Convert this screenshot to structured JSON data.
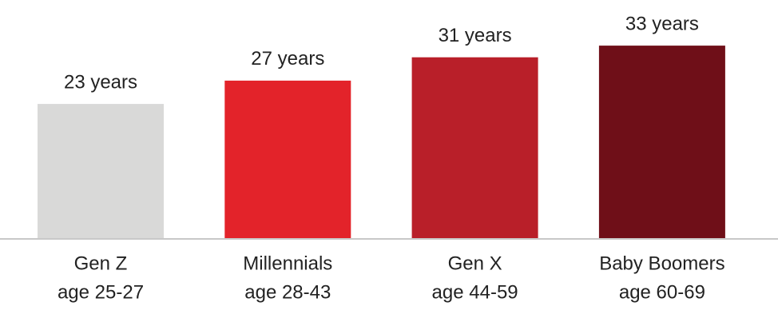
{
  "chart_data": {
    "type": "bar",
    "categories": [
      [
        "Gen Z",
        "age 25-27"
      ],
      [
        "Millennials",
        "age 28-43"
      ],
      [
        "Gen X",
        "age 44-59"
      ],
      [
        "Baby Boomers",
        "age 60-69"
      ]
    ],
    "values": [
      23,
      27,
      31,
      33
    ],
    "value_labels": [
      "23 years",
      "27 years",
      "31 years",
      "33 years"
    ],
    "colors": [
      "#d9d9d8",
      "#e3232a",
      "#b91f29",
      "#6f0f18"
    ]
  }
}
